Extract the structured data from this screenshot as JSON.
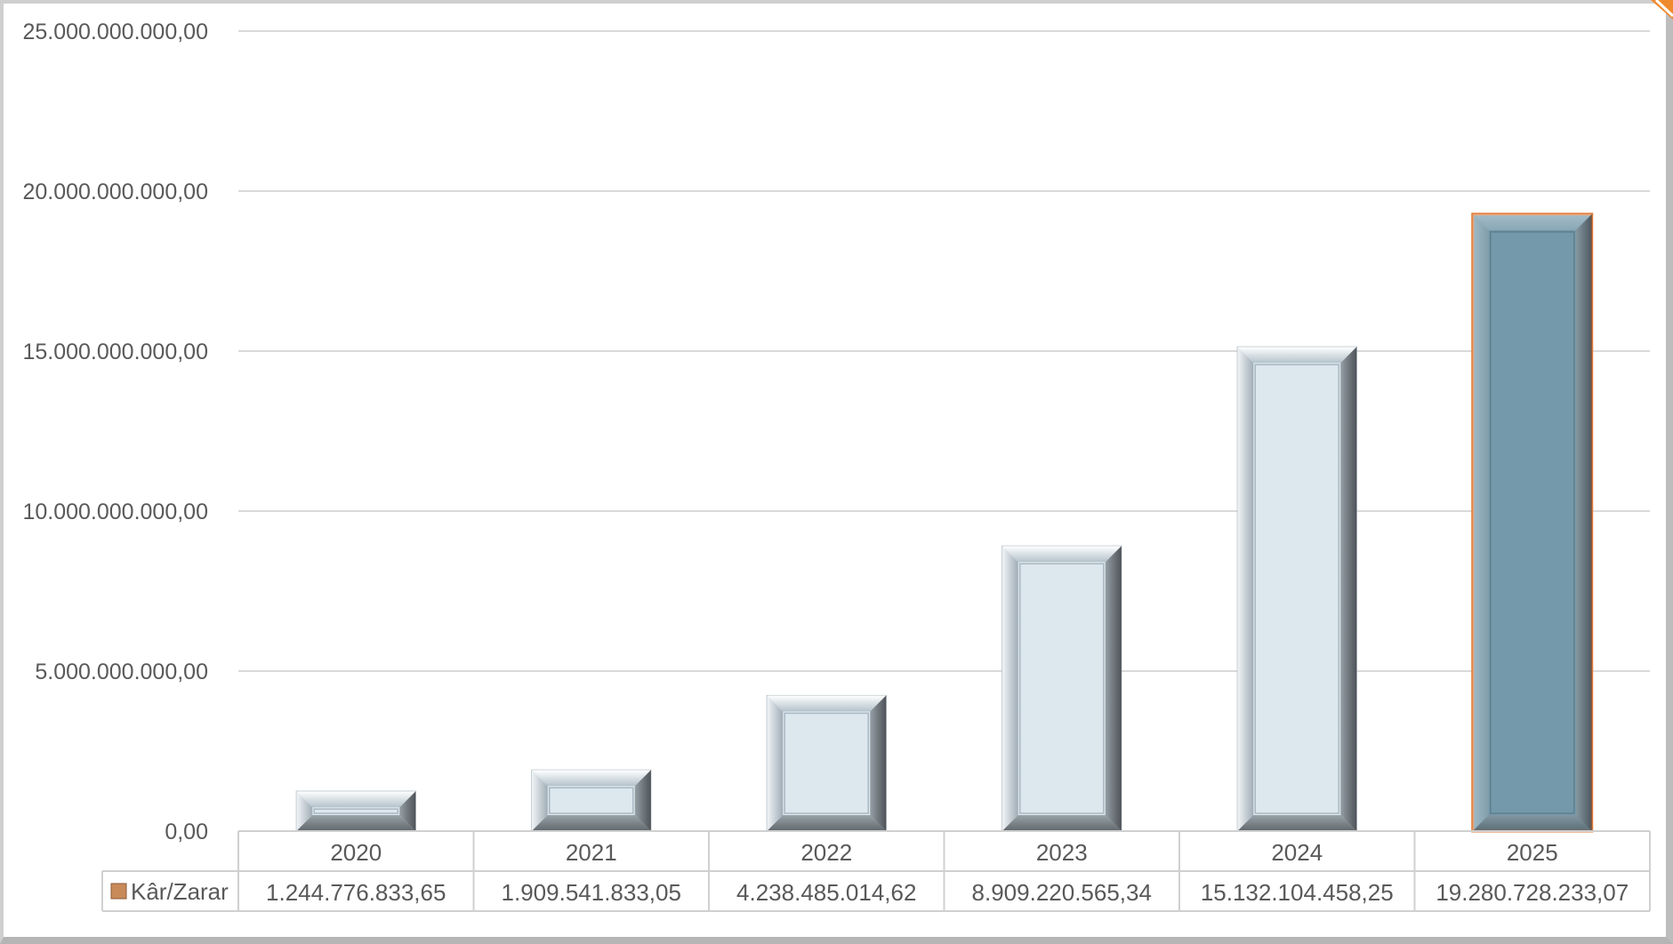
{
  "chart_data": {
    "type": "bar",
    "categories": [
      "2020",
      "2021",
      "2022",
      "2023",
      "2024",
      "2025"
    ],
    "series": [
      {
        "name": "Kâr/Zarar",
        "values": [
          1244776833.65,
          1909541833.05,
          4238485014.62,
          8909220565.34,
          15132104458.25,
          19280728233.07
        ],
        "value_labels": [
          "1.244.776.833,65",
          "1.909.541.833,05",
          "4.238.485.014,62",
          "8.909.220.565,34",
          "15.132.104.458,25",
          "19.280.728.233,07"
        ]
      }
    ],
    "ylim": [
      0,
      25000000000
    ],
    "y_ticks": [
      0,
      5000000000,
      10000000000,
      15000000000,
      20000000000,
      25000000000
    ],
    "y_tick_labels": [
      "0,00",
      "5.000.000.000,00",
      "10.000.000.000,00",
      "15.000.000.000,00",
      "20.000.000.000,00",
      "25.000.000.000,00"
    ],
    "grid": true,
    "legend": "data-table",
    "bar_color": "#dde7ee",
    "highlight_index": 5,
    "highlight_color": "#7399aa",
    "highlight_outline": "#e07b39",
    "legend_key_color": "#c98a5a"
  }
}
